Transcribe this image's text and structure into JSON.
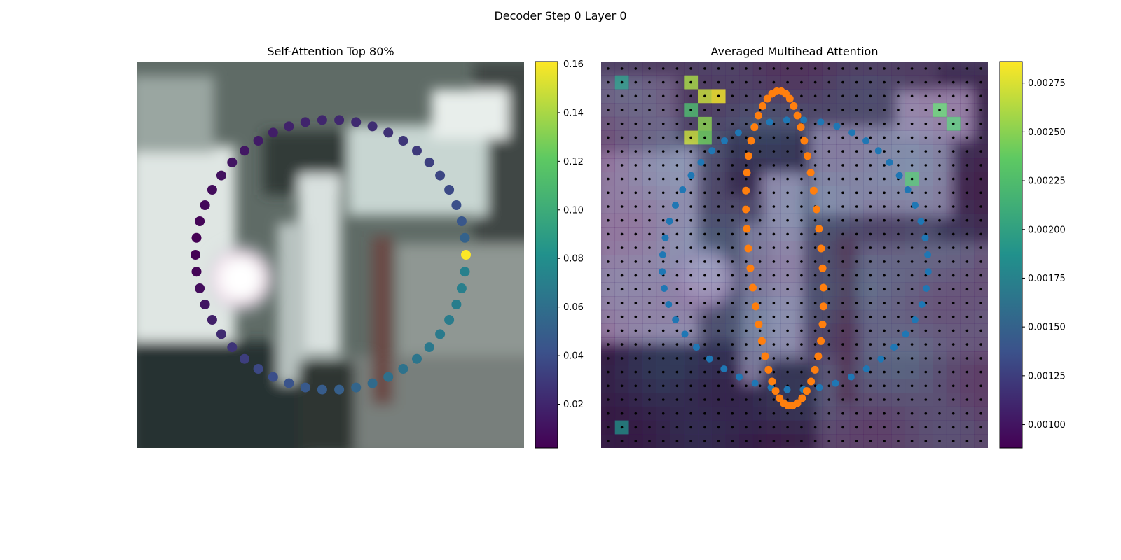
{
  "figure": {
    "suptitle": "Decoder Step 0 Layer 0",
    "left_title": "Self-Attention Top 80%",
    "right_title": "Averaged Multihead Attention"
  },
  "colors": {
    "viridis": [
      "#440154",
      "#3b528b",
      "#21918c",
      "#5ec962",
      "#fde725"
    ],
    "query_points": "#1f77b4",
    "target_points": "#ff7f0e",
    "grid_dots": "#000000"
  },
  "chart_data": [
    {
      "type": "scatter",
      "title": "Self-Attention Top 80%",
      "background": "blurred street photograph (dark car, cyclist, white vehicle, bright headlight)",
      "colorbar": {
        "cmap": "viridis",
        "range": [
          0.002,
          0.161
        ],
        "ticks": [
          "0.02",
          "0.04",
          "0.06",
          "0.08",
          "0.10",
          "0.12",
          "0.14",
          "0.16"
        ]
      },
      "points_count": 50,
      "point_values": [
        0.161,
        0.052,
        0.045,
        0.041,
        0.038,
        0.036,
        0.033,
        0.03,
        0.028,
        0.026,
        0.024,
        0.022,
        0.021,
        0.02,
        0.019,
        0.018,
        0.016,
        0.015,
        0.013,
        0.012,
        0.01,
        0.008,
        0.006,
        0.004,
        0.002,
        0.002,
        0.004,
        0.008,
        0.012,
        0.017,
        0.022,
        0.027,
        0.032,
        0.037,
        0.04,
        0.043,
        0.046,
        0.048,
        0.05,
        0.054,
        0.057,
        0.06,
        0.062,
        0.064,
        0.066,
        0.067,
        0.068,
        0.069,
        0.07,
        0.071
      ],
      "xlim": [
        0,
        1
      ],
      "ylim": [
        0,
        1
      ],
      "axes_visible": false
    },
    {
      "type": "heatmap",
      "title": "Averaged Multihead Attention",
      "grid_size": [
        28,
        28
      ],
      "colorbar": {
        "cmap": "viridis",
        "range": [
          0.00088,
          0.00286
        ],
        "ticks": [
          "0.00100",
          "0.00125",
          "0.00150",
          "0.00175",
          "0.00200",
          "0.00225",
          "0.00250",
          "0.00275"
        ]
      },
      "background": "same street photograph, overlaid with attention heatmap",
      "hot_cells": [
        {
          "col": 6,
          "row": 1,
          "value": 0.0026
        },
        {
          "col": 7,
          "row": 2,
          "value": 0.0027
        },
        {
          "col": 8,
          "row": 2,
          "value": 0.00285
        },
        {
          "col": 6,
          "row": 3,
          "value": 0.0022
        },
        {
          "col": 7,
          "row": 4,
          "value": 0.0025
        },
        {
          "col": 6,
          "row": 5,
          "value": 0.0027
        },
        {
          "col": 7,
          "row": 5,
          "value": 0.0024
        },
        {
          "col": 1,
          "row": 1,
          "value": 0.0019
        },
        {
          "col": 24,
          "row": 3,
          "value": 0.0023
        },
        {
          "col": 25,
          "row": 4,
          "value": 0.0022
        },
        {
          "col": 22,
          "row": 8,
          "value": 0.0022
        },
        {
          "col": 1,
          "row": 26,
          "value": 0.0018
        }
      ],
      "series": [
        {
          "name": "",
          "color": "#1f77b4",
          "shape": "ellipse of 50 query points"
        },
        {
          "name": "",
          "color": "#ff7f0e",
          "shape": "vertical loop of 50 target points"
        }
      ],
      "axes_visible": false
    }
  ]
}
